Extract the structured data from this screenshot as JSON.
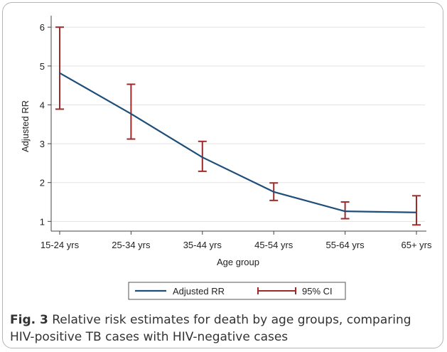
{
  "chart_data": {
    "type": "line",
    "title": "",
    "xlabel": "Age group",
    "ylabel": "Adjusted RR",
    "categories": [
      "15-24 yrs",
      "25-34 yrs",
      "35-44 yrs",
      "45-54 yrs",
      "55-64 yrs",
      "65+ yrs"
    ],
    "series": [
      {
        "name": "Adjusted RR",
        "values": [
          4.82,
          3.77,
          2.65,
          1.76,
          1.26,
          1.23
        ],
        "color": "#1f4e79"
      }
    ],
    "ci": {
      "name": "95% CI",
      "lower": [
        3.89,
        3.12,
        2.29,
        1.54,
        1.07,
        0.91
      ],
      "upper": [
        6.0,
        4.53,
        3.06,
        1.99,
        1.5,
        1.66
      ],
      "color": "#9e2a2b"
    },
    "ylim": [
      0.75,
      6.15
    ],
    "yticks": [
      1,
      2,
      3,
      4,
      5,
      6
    ],
    "grid": true,
    "legend_position": "bottom"
  },
  "caption": {
    "label": "Fig. 3",
    "text": " Relative risk estimates for death by age groups, comparing HIV-positive TB cases with HIV-negative cases"
  }
}
